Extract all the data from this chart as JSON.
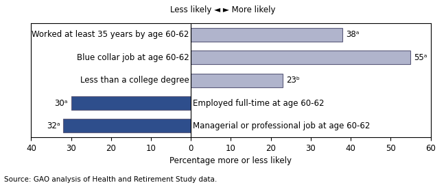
{
  "categories": [
    "Worked at least 35 years by age 60-62",
    "Blue collar job at age 60-62",
    "Less than a college degree",
    "Employed full-time at age 60-62",
    "Managerial or professional job at age 60-62"
  ],
  "values": [
    38,
    55,
    23,
    -30,
    -32
  ],
  "bar_colors": [
    "#b0b4cc",
    "#b0b4cc",
    "#b0b4cc",
    "#2e4e8c",
    "#2e4e8c"
  ],
  "bar_labels": [
    "38ᵃ",
    "55ᵃ",
    "23ᵇ",
    "30ᵃ",
    "32ᵃ"
  ],
  "bar_label_sides": [
    "right",
    "right",
    "right",
    "left",
    "left"
  ],
  "xlabel": "Percentage more or less likely",
  "xlim": [
    -40,
    60
  ],
  "xticks": [
    -40,
    -30,
    -20,
    -10,
    0,
    10,
    20,
    30,
    40,
    50,
    60
  ],
  "xticklabels": [
    "40",
    "30",
    "20",
    "10",
    "0",
    "10",
    "20",
    "30",
    "40",
    "50",
    "60"
  ],
  "top_label": "Less likely ◄ ► More likely",
  "source_text": "Source: GAO analysis of Health and Retirement Study data.",
  "bar_edge_color": "#5a5a7a",
  "background_color": "#ffffff",
  "label_fontsize": 8.5,
  "tick_fontsize": 8.5,
  "source_fontsize": 7.5
}
